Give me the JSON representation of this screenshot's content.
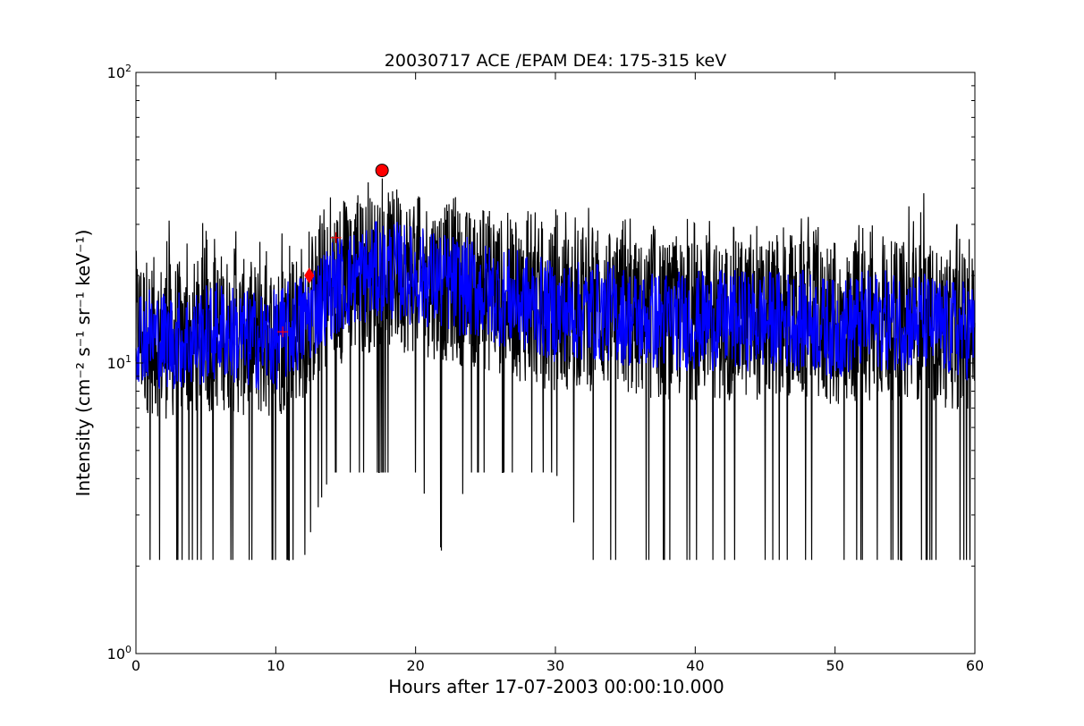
{
  "chart_data": {
    "type": "line",
    "title": "20030717 ACE /EPAM DE4: 175-315 keV",
    "xlabel": "Hours after 17-07-2003 00:00:10.000",
    "ylabel": "Intensity (cm⁻² s⁻¹ sr⁻¹ keV⁻¹)",
    "xlim": [
      0,
      60
    ],
    "ylim": [
      1,
      100
    ],
    "yscale": "log",
    "x_ticks": [
      0,
      10,
      20,
      30,
      40,
      50,
      60
    ],
    "x_tick_labels": [
      "0",
      "10",
      "20",
      "30",
      "40",
      "50",
      "60"
    ],
    "y_ticks": [
      1,
      10,
      100
    ],
    "y_tick_labels": [
      {
        "base": "10",
        "exp": "0"
      },
      {
        "base": "10",
        "exp": "1"
      },
      {
        "base": "10",
        "exp": "2"
      }
    ],
    "grid": false,
    "series": [
      {
        "color": "#000000",
        "style": "raw intensity, high cadence",
        "x": [
          0,
          2,
          4,
          6,
          8,
          10,
          12,
          14,
          16,
          18,
          20,
          22,
          24,
          26,
          28,
          30,
          32,
          34,
          36,
          38,
          40,
          42,
          44,
          46,
          48,
          50,
          52,
          54,
          56,
          58,
          60
        ],
        "values": [
          13,
          12,
          12,
          13,
          12,
          12,
          14,
          18,
          20,
          21,
          20,
          19,
          18,
          17,
          16,
          15,
          15,
          15,
          14,
          14,
          14,
          14,
          14,
          14,
          14,
          13,
          14,
          14,
          14,
          13,
          13
        ],
        "min_values": [
          2.1,
          2.1,
          2.1,
          2.1,
          2.1,
          2.1,
          2.1,
          4.2,
          4.2,
          4.2,
          4.2,
          2.1,
          4.2,
          4.2,
          4.2,
          4.2,
          2.1,
          2.1,
          2.1,
          2.1,
          2.1,
          2.1,
          2.1,
          2.1,
          2.1,
          2.1,
          2.1,
          2.1,
          2.1,
          2.1,
          2.1
        ],
        "max_values": [
          27,
          32,
          30,
          32,
          28,
          30,
          32,
          38,
          42,
          44,
          40,
          40,
          38,
          36,
          34,
          34,
          36,
          34,
          32,
          30,
          32,
          30,
          30,
          30,
          32,
          30,
          30,
          32,
          40,
          32,
          28
        ]
      },
      {
        "color": "#0000ff",
        "style": "smoothed intensity",
        "x": [
          0,
          2,
          4,
          6,
          8,
          10,
          12,
          14,
          16,
          18,
          20,
          22,
          24,
          26,
          28,
          30,
          32,
          34,
          36,
          38,
          40,
          42,
          44,
          46,
          48,
          50,
          52,
          54,
          56,
          58,
          60
        ],
        "values": [
          13,
          12,
          12,
          13,
          12,
          12,
          14,
          18,
          20,
          21,
          20,
          19,
          18,
          17,
          16,
          15,
          15,
          15,
          14,
          14,
          14,
          14,
          14,
          14,
          14,
          13,
          14,
          14,
          14,
          13,
          13
        ]
      }
    ],
    "markers": [
      {
        "shape": "circle",
        "color": "#ff0000",
        "x": 17.6,
        "y": 46
      },
      {
        "shape": "diamond",
        "color": "#ff0000",
        "x": 12.4,
        "y": 20
      },
      {
        "shape": "plus",
        "color": "#ff0000",
        "x": 10.5,
        "y": 12.8
      },
      {
        "shape": "plus",
        "color": "#ff0000",
        "x": 14.3,
        "y": 27
      }
    ]
  }
}
